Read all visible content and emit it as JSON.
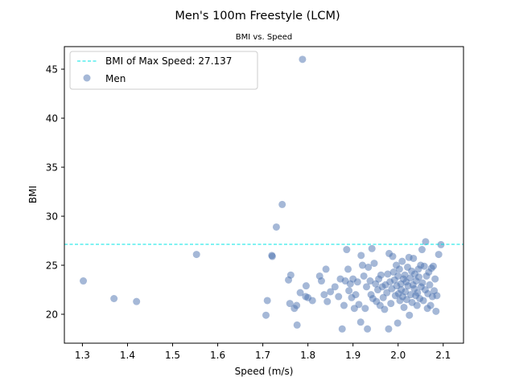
{
  "chart_data": {
    "type": "scatter",
    "title": "Men's 100m Freestyle (LCM)",
    "subtitle": "BMI vs. Speed",
    "xlabel": "Speed (m/s)",
    "ylabel": "BMI",
    "xlim": [
      1.26,
      2.145
    ],
    "ylim": [
      17.05,
      47.3
    ],
    "xticks": [
      "1.3",
      "1.4",
      "1.5",
      "1.6",
      "1.7",
      "1.8",
      "1.9",
      "2.0",
      "2.1"
    ],
    "yticks": [
      "20",
      "25",
      "30",
      "35",
      "40",
      "45"
    ],
    "grid": false,
    "legend_position": "upper-left",
    "colors": {
      "scatter": "#4c72b0",
      "reference_line": "#00e5e5"
    },
    "reference_line": {
      "label": "BMI of Max Speed: 27.137",
      "y": 27.137,
      "style": "dashed"
    },
    "series": [
      {
        "name": "Men",
        "points": [
          [
            1.302,
            23.4
          ],
          [
            1.37,
            21.6
          ],
          [
            1.42,
            21.3
          ],
          [
            1.553,
            26.1
          ],
          [
            1.707,
            19.9
          ],
          [
            1.71,
            21.4
          ],
          [
            1.72,
            26.0
          ],
          [
            1.721,
            25.9
          ],
          [
            1.73,
            28.9
          ],
          [
            1.743,
            31.2
          ],
          [
            1.757,
            23.5
          ],
          [
            1.76,
            21.1
          ],
          [
            1.762,
            24.0
          ],
          [
            1.77,
            20.6
          ],
          [
            1.775,
            20.9
          ],
          [
            1.776,
            18.9
          ],
          [
            1.788,
            46.0
          ],
          [
            1.783,
            22.2
          ],
          [
            1.796,
            22.9
          ],
          [
            1.795,
            21.8
          ],
          [
            1.8,
            21.7
          ],
          [
            1.81,
            21.4
          ],
          [
            1.826,
            23.9
          ],
          [
            1.83,
            23.4
          ],
          [
            1.836,
            22.0
          ],
          [
            1.84,
            24.6
          ],
          [
            1.843,
            21.3
          ],
          [
            1.85,
            22.3
          ],
          [
            1.86,
            22.8
          ],
          [
            1.868,
            21.8
          ],
          [
            1.872,
            23.6
          ],
          [
            1.876,
            18.5
          ],
          [
            1.883,
            23.4
          ],
          [
            1.88,
            20.9
          ],
          [
            1.886,
            26.6
          ],
          [
            1.889,
            24.6
          ],
          [
            1.891,
            22.4
          ],
          [
            1.894,
            23.1
          ],
          [
            1.897,
            21.7
          ],
          [
            1.9,
            23.6
          ],
          [
            1.903,
            20.6
          ],
          [
            1.906,
            22.0
          ],
          [
            1.91,
            23.3
          ],
          [
            1.913,
            21.0
          ],
          [
            1.917,
            19.2
          ],
          [
            1.918,
            26.0
          ],
          [
            1.921,
            25.0
          ],
          [
            1.924,
            23.9
          ],
          [
            1.927,
            20.6
          ],
          [
            1.93,
            22.8
          ],
          [
            1.932,
            18.5
          ],
          [
            1.934,
            24.8
          ],
          [
            1.938,
            23.4
          ],
          [
            1.94,
            22.0
          ],
          [
            1.942,
            26.7
          ],
          [
            1.944,
            21.6
          ],
          [
            1.947,
            25.2
          ],
          [
            1.95,
            23.1
          ],
          [
            1.952,
            21.3
          ],
          [
            1.955,
            22.5
          ],
          [
            1.957,
            23.6
          ],
          [
            1.96,
            20.9
          ],
          [
            1.962,
            24.0
          ],
          [
            1.965,
            22.8
          ],
          [
            1.967,
            21.7
          ],
          [
            1.97,
            20.5
          ],
          [
            1.972,
            23.0
          ],
          [
            1.975,
            22.2
          ],
          [
            1.977,
            24.1
          ],
          [
            1.979,
            18.5
          ],
          [
            1.98,
            26.2
          ],
          [
            1.982,
            23.3
          ],
          [
            1.984,
            21.1
          ],
          [
            1.986,
            22.6
          ],
          [
            1.988,
            25.9
          ],
          [
            1.99,
            24.3
          ],
          [
            1.992,
            23.5
          ],
          [
            1.994,
            21.9
          ],
          [
            1.996,
            25.0
          ],
          [
            1.997,
            22.9
          ],
          [
            1.999,
            19.1
          ],
          [
            2.0,
            23.9
          ],
          [
            2.001,
            22.1
          ],
          [
            2.003,
            24.6
          ],
          [
            2.004,
            21.4
          ],
          [
            2.006,
            23.1
          ],
          [
            2.007,
            22.5
          ],
          [
            2.009,
            25.4
          ],
          [
            2.01,
            21.8
          ],
          [
            2.012,
            23.6
          ],
          [
            2.013,
            20.7
          ],
          [
            2.015,
            24.0
          ],
          [
            2.016,
            22.3
          ],
          [
            2.018,
            23.3
          ],
          [
            2.019,
            21.5
          ],
          [
            2.021,
            24.8
          ],
          [
            2.022,
            22.9
          ],
          [
            2.024,
            25.8
          ],
          [
            2.025,
            19.9
          ],
          [
            2.027,
            23.7
          ],
          [
            2.028,
            22.0
          ],
          [
            2.03,
            24.4
          ],
          [
            2.031,
            21.2
          ],
          [
            2.033,
            23.0
          ],
          [
            2.034,
            25.7
          ],
          [
            2.036,
            22.6
          ],
          [
            2.037,
            24.1
          ],
          [
            2.039,
            21.9
          ],
          [
            2.04,
            23.4
          ],
          [
            2.042,
            20.9
          ],
          [
            2.043,
            22.2
          ],
          [
            2.045,
            24.6
          ],
          [
            2.046,
            23.8
          ],
          [
            2.048,
            21.6
          ],
          [
            2.05,
            25.0
          ],
          [
            2.051,
            22.8
          ],
          [
            2.053,
            26.6
          ],
          [
            2.054,
            23.2
          ],
          [
            2.056,
            21.4
          ],
          [
            2.058,
            24.9
          ],
          [
            2.06,
            22.5
          ],
          [
            2.061,
            27.4
          ],
          [
            2.063,
            23.9
          ],
          [
            2.065,
            20.6
          ],
          [
            2.066,
            22.1
          ],
          [
            2.068,
            24.3
          ],
          [
            2.07,
            23.0
          ],
          [
            2.072,
            20.9
          ],
          [
            2.074,
            24.7
          ],
          [
            2.076,
            21.8
          ],
          [
            2.078,
            24.9
          ],
          [
            2.08,
            22.4
          ],
          [
            2.082,
            23.6
          ],
          [
            2.084,
            20.3
          ],
          [
            2.086,
            21.9
          ],
          [
            2.09,
            26.1
          ],
          [
            2.095,
            27.1
          ]
        ]
      }
    ]
  }
}
